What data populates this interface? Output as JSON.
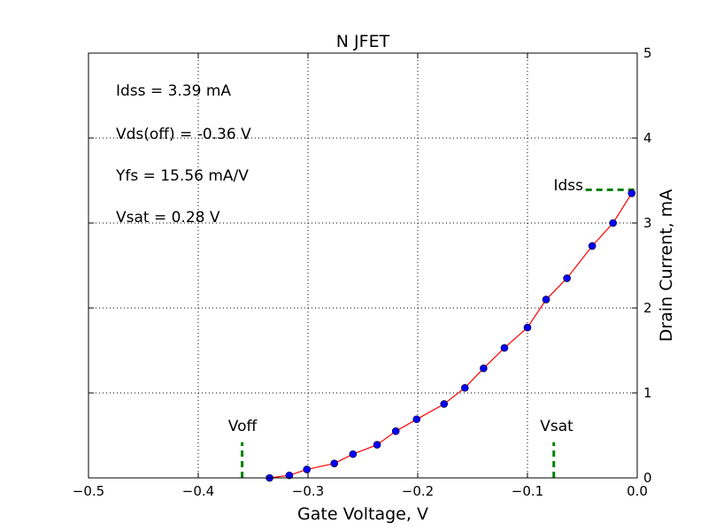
{
  "chart_data": {
    "type": "line",
    "title": "N JFET",
    "xlabel": "Gate Voltage, V",
    "ylabel": "Drain Current, mA",
    "xlim": [
      -0.5,
      0.0
    ],
    "ylim": [
      0,
      5
    ],
    "grid": true,
    "y_axis_position": "right",
    "x_ticks": [
      -0.5,
      -0.4,
      -0.3,
      -0.2,
      -0.1,
      0.0
    ],
    "x_tick_labels": [
      "−0.5",
      "−0.4",
      "−0.3",
      "−0.2",
      "−0.1",
      "0.0"
    ],
    "y_ticks": [
      0,
      1,
      2,
      3,
      4,
      5
    ],
    "y_tick_labels": [
      "0",
      "1",
      "2",
      "3",
      "4",
      "5"
    ],
    "series": [
      {
        "x": [
          -0.335,
          -0.317,
          -0.301,
          -0.276,
          -0.259,
          -0.237,
          -0.22,
          -0.201,
          -0.176,
          -0.157,
          -0.14,
          -0.121,
          -0.1,
          -0.083,
          -0.064,
          -0.041,
          -0.022,
          -0.005
        ],
        "y": [
          0.0,
          0.03,
          0.1,
          0.17,
          0.28,
          0.39,
          0.55,
          0.69,
          0.87,
          1.06,
          1.29,
          1.53,
          1.77,
          2.1,
          2.35,
          2.73,
          3.0,
          3.35
        ],
        "line_color": "#ff0000",
        "marker_color": "#0000ff",
        "marker_edge_color": "#000000"
      }
    ],
    "annotations": [
      "Idss = 3.39 mA",
      "Vds(off) = -0.36 V",
      "Yfs = 15.56 mA/V",
      "Vsat = 0.28 V"
    ],
    "markers": {
      "voff": {
        "label": "Voff",
        "x": -0.36,
        "y_range": [
          0,
          0.42
        ]
      },
      "vsat": {
        "label": "Vsat",
        "x": -0.076,
        "y_range": [
          0,
          0.42
        ]
      },
      "idss": {
        "label": "Idss",
        "y": 3.39,
        "x_range": [
          -0.047,
          0.0
        ]
      }
    },
    "marker_line_color": "#008000"
  }
}
